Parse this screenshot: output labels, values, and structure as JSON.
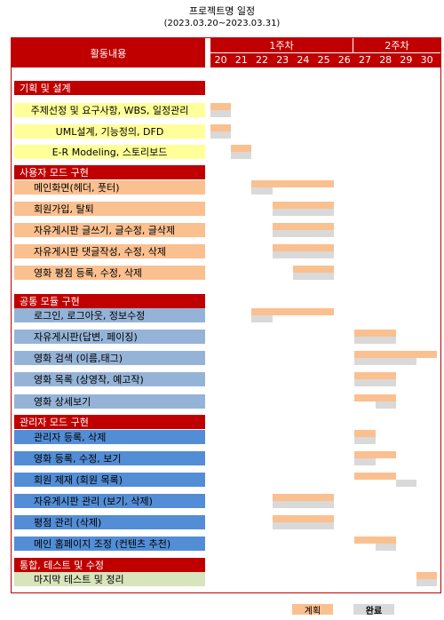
{
  "title": "프로젝트명 일정",
  "period": "(2023.03.20~2023.03.31)",
  "header": {
    "activity": "활동내용",
    "weeks": [
      "1주차",
      "2주차"
    ],
    "days": [
      "20",
      "21",
      "22",
      "23",
      "24",
      "25",
      "26",
      "27",
      "28",
      "29",
      "30"
    ]
  },
  "sections": [
    {
      "label": "기획 및 설계",
      "tasks": [
        {
          "label": "주제선정 및 요구사항, WBS, 일정관리",
          "color": "yellow",
          "plan": [
            20,
            20
          ],
          "done": [
            20,
            20
          ]
        },
        {
          "label": "UML설계, 기능정의, DFD",
          "color": "yellow",
          "plan": [
            20,
            20
          ],
          "done": [
            20,
            20
          ]
        },
        {
          "label": "E-R Modeling, 스토리보드",
          "color": "yellow",
          "plan": [
            21,
            21
          ],
          "done": [
            21,
            21
          ]
        }
      ]
    },
    {
      "label": "사용자 모드 구현",
      "tasks": [
        {
          "label": "메인화면(헤더, 풋터)",
          "color": "orange",
          "plan": [
            22,
            25
          ],
          "done": [
            22,
            22
          ]
        },
        {
          "label": "회원가입, 탈퇴",
          "color": "orange",
          "plan": [
            23,
            25
          ],
          "done": [
            23,
            25
          ]
        },
        {
          "label": "자유게시판 글쓰기, 글수정, 글삭제",
          "color": "orange",
          "plan": [
            23,
            25
          ],
          "done": [
            23,
            25
          ]
        },
        {
          "label": "자유게시판 댓글작성, 수정, 삭제",
          "color": "orange",
          "plan": [
            23,
            25
          ],
          "done": [
            23,
            25
          ]
        },
        {
          "label": "영화 평점 등록, 수정, 삭제",
          "color": "orange",
          "plan": [
            24,
            25
          ],
          "done": [
            24,
            25
          ]
        }
      ]
    },
    {
      "label": "공통 모듈 구현",
      "tasks": [
        {
          "label": "로그인, 로그아웃, 정보수정",
          "color": "lightblue",
          "plan": [
            22,
            25
          ],
          "done": [
            22,
            22
          ]
        },
        {
          "label": "자유게시판(답변, 페이징)",
          "color": "lightblue",
          "plan": [
            27,
            28
          ],
          "done": [
            27,
            28
          ]
        },
        {
          "label": "영화 검색 (이름,태그)",
          "color": "lightblue",
          "plan": [
            27,
            30
          ],
          "done": [
            27,
            29
          ]
        },
        {
          "label": "영화 목록 (상영작, 예고작)",
          "color": "lightblue",
          "plan": [
            27,
            28
          ],
          "done": [
            27,
            28
          ]
        },
        {
          "label": "영화 상세보기",
          "color": "lightblue",
          "plan": [
            27,
            28
          ],
          "done": [
            28,
            28
          ]
        }
      ]
    },
    {
      "label": "관리자 모드 구현",
      "tasks": [
        {
          "label": "관리자 등록, 삭제",
          "color": "blue",
          "plan": [
            27,
            27
          ],
          "done": [
            27,
            27
          ]
        },
        {
          "label": "영화 등록, 수정, 보기",
          "color": "blue",
          "plan": [
            27,
            28
          ],
          "done": [
            27,
            27
          ]
        },
        {
          "label": "회원 제재 (회원 목록)",
          "color": "blue",
          "plan": [
            27,
            28
          ],
          "done": [
            29,
            29
          ]
        },
        {
          "label": "자유게시판 관리 (보기, 삭제)",
          "color": "blue",
          "plan": [
            23,
            25
          ],
          "done": [
            23,
            25
          ]
        },
        {
          "label": "평점 관리 (삭제)",
          "color": "blue",
          "plan": [
            23,
            25
          ],
          "done": [
            23,
            25
          ]
        },
        {
          "label": "메인 홈페이지 조정 (컨텐츠 추천)",
          "color": "blue",
          "plan": [
            27,
            28
          ],
          "done": [
            28,
            28
          ]
        }
      ]
    },
    {
      "label": "통합, 테스트 및 수정",
      "tasks": [
        {
          "label": "마지막 테스트 및 정리",
          "color": "green",
          "plan": [
            30,
            30
          ],
          "done": [
            30,
            30
          ]
        }
      ]
    }
  ],
  "legend": {
    "plan": "계획",
    "done": "완료"
  },
  "colors": {
    "header": "#c00000",
    "yellow": "#ffff99",
    "orange": "#fac090",
    "lightblue": "#95b3d7",
    "blue": "#538dd5",
    "green": "#d8e4bc",
    "plan": "#fac090",
    "done": "#d9d9d9"
  }
}
